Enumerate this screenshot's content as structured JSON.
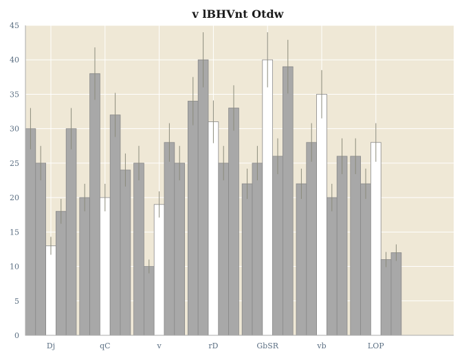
{
  "chart_data": {
    "type": "bar",
    "title": "v lBHVnt Otdw",
    "xlabel": "",
    "ylabel": "",
    "categories": [
      "Dj",
      "qC",
      "v",
      "rD",
      "GbSR",
      "vb",
      "LOP"
    ],
    "ylim": [
      0,
      45
    ],
    "yticks": [
      0,
      5,
      10,
      15,
      20,
      25,
      30,
      35,
      40,
      45
    ],
    "grid": true,
    "legend": "none",
    "series": [
      {
        "values": [
          30,
          20,
          25,
          34,
          22,
          22,
          26
        ],
        "errors": [
          3,
          2,
          2.5,
          3.5,
          2.2,
          2.2,
          2.6
        ],
        "color": "#a8a8a8"
      },
      {
        "values": [
          25,
          38,
          10,
          40,
          25,
          28,
          22
        ],
        "errors": [
          2.5,
          3.8,
          1,
          4,
          2.5,
          2.8,
          2.2
        ],
        "color": "#a8a8a8"
      },
      {
        "values": [
          13,
          20,
          19,
          31,
          40,
          35,
          28
        ],
        "errors": [
          1.3,
          2,
          1.9,
          3.1,
          4,
          3.5,
          2.8
        ],
        "color": "#ffffff"
      },
      {
        "values": [
          18,
          32,
          28,
          25,
          26,
          20,
          11
        ],
        "errors": [
          1.8,
          3.2,
          2.8,
          2.5,
          2.6,
          2,
          1.1
        ],
        "color": "#a8a8a8"
      },
      {
        "values": [
          30,
          24,
          25,
          33,
          39,
          26,
          12
        ],
        "errors": [
          3,
          2.4,
          2.5,
          3.3,
          3.9,
          2.6,
          1.2
        ],
        "color": "#a8a8a8"
      }
    ],
    "colors": {
      "background": "#efe8d6",
      "grid": "#ffffff",
      "error_bar": "#8a8a7a",
      "bar_edge": "#888888",
      "axis": "#aaaaaa"
    }
  }
}
